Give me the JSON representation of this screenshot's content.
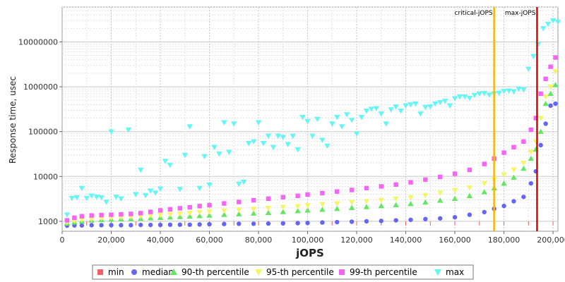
{
  "chart_data": {
    "type": "scatter",
    "xlabel": "jOPS",
    "ylabel": "Response time, usec",
    "xlim": [
      0,
      202000
    ],
    "ylim": [
      600,
      60000000
    ],
    "y_scale": "log",
    "grid": true,
    "legend_position": "bottom",
    "x_ticks": [
      {
        "value": 0,
        "label": "0"
      },
      {
        "value": 20000,
        "label": "20,000"
      },
      {
        "value": 40000,
        "label": "40,000"
      },
      {
        "value": 60000,
        "label": "60,000"
      },
      {
        "value": 80000,
        "label": "80,000"
      },
      {
        "value": 100000,
        "label": "100,000"
      },
      {
        "value": 120000,
        "label": "120,000"
      },
      {
        "value": 140000,
        "label": "140,000"
      },
      {
        "value": 160000,
        "label": "160,000"
      },
      {
        "value": 180000,
        "label": "180,000"
      },
      {
        "value": 200000,
        "label": "200,000"
      }
    ],
    "y_ticks": [
      {
        "value": 1000,
        "label": "1000"
      },
      {
        "value": 10000,
        "label": "10000"
      },
      {
        "value": 100000,
        "label": "100000"
      },
      {
        "value": 1000000,
        "label": "1000000"
      },
      {
        "value": 10000000,
        "label": "10000000"
      }
    ],
    "markers": [
      {
        "name": "critical-jOPS",
        "x": 176000,
        "color": "#f5b800"
      },
      {
        "name": "max-jOPS",
        "x": 193500,
        "color": "#e00000"
      }
    ],
    "series": [
      {
        "name": "min",
        "color": "#f06060",
        "shape": "square",
        "x": [
          2000,
          10000,
          20000,
          30000,
          40000,
          50000,
          60000,
          70000,
          80000,
          90000,
          100000,
          110000,
          120000,
          130000,
          140000,
          150000,
          160000,
          170000,
          180000,
          190000,
          200000
        ],
        "y": [
          900,
          900,
          900,
          900,
          900,
          900,
          900,
          900,
          900,
          900,
          900,
          900,
          900,
          900,
          900,
          900,
          900,
          900,
          900,
          900,
          900
        ]
      },
      {
        "name": "median",
        "color": "#6464f5",
        "shape": "circle",
        "x": [
          2000,
          5000,
          8000,
          12000,
          16000,
          20000,
          24000,
          28000,
          32000,
          36000,
          40000,
          44000,
          48000,
          52000,
          56000,
          60000,
          66000,
          72000,
          78000,
          84000,
          90000,
          96000,
          100000,
          106000,
          112000,
          118000,
          124000,
          130000,
          136000,
          142000,
          148000,
          154000,
          160000,
          166000,
          172000,
          176000,
          180000,
          184000,
          188000,
          191000,
          193000,
          195000,
          197000,
          199000,
          201000
        ],
        "y": [
          800,
          810,
          810,
          820,
          820,
          820,
          820,
          820,
          830,
          830,
          830,
          840,
          840,
          840,
          850,
          860,
          870,
          880,
          880,
          890,
          900,
          910,
          920,
          940,
          960,
          980,
          1000,
          1020,
          1050,
          1080,
          1120,
          1160,
          1230,
          1400,
          1600,
          1900,
          2200,
          2800,
          3500,
          7000,
          13000,
          50000,
          150000,
          380000,
          420000
        ]
      },
      {
        "name": "90-th percentile",
        "color": "#64e664",
        "shape": "triangle-up",
        "x": [
          2000,
          5000,
          8000,
          12000,
          16000,
          20000,
          24000,
          28000,
          32000,
          36000,
          40000,
          44000,
          48000,
          52000,
          56000,
          60000,
          66000,
          72000,
          78000,
          84000,
          90000,
          96000,
          100000,
          106000,
          112000,
          118000,
          124000,
          130000,
          136000,
          142000,
          148000,
          154000,
          160000,
          166000,
          172000,
          176000,
          180000,
          184000,
          188000,
          191000,
          193000,
          195000,
          197000,
          199000,
          201000
        ],
        "y": [
          900,
          950,
          1000,
          1050,
          1080,
          1100,
          1120,
          1130,
          1150,
          1180,
          1200,
          1230,
          1260,
          1290,
          1320,
          1350,
          1400,
          1450,
          1500,
          1550,
          1620,
          1700,
          1750,
          1820,
          1900,
          2000,
          2100,
          2200,
          2320,
          2450,
          2650,
          2900,
          3200,
          3700,
          4500,
          5500,
          7000,
          9500,
          15000,
          25000,
          40000,
          100000,
          420000,
          700000,
          1100000
        ]
      },
      {
        "name": "95-th percentile",
        "color": "#f5f564",
        "shape": "triangle-down",
        "x": [
          2000,
          5000,
          8000,
          12000,
          16000,
          20000,
          24000,
          28000,
          32000,
          36000,
          40000,
          44000,
          48000,
          52000,
          56000,
          60000,
          66000,
          72000,
          78000,
          84000,
          90000,
          96000,
          100000,
          106000,
          112000,
          118000,
          124000,
          130000,
          136000,
          142000,
          148000,
          154000,
          160000,
          166000,
          172000,
          176000,
          180000,
          184000,
          188000,
          191000,
          193000,
          195000,
          197000,
          199000,
          201000
        ],
        "y": [
          950,
          1020,
          1080,
          1120,
          1160,
          1200,
          1230,
          1260,
          1300,
          1340,
          1380,
          1430,
          1480,
          1530,
          1600,
          1650,
          1720,
          1800,
          1880,
          1970,
          2060,
          2160,
          2250,
          2380,
          2500,
          2650,
          2800,
          2950,
          3150,
          3400,
          3800,
          4300,
          4900,
          5600,
          7000,
          8500,
          11000,
          14000,
          20000,
          35000,
          60000,
          200000,
          600000,
          1000000,
          2200000
        ]
      },
      {
        "name": "99-th percentile",
        "color": "#f564f5",
        "shape": "square",
        "x": [
          2000,
          5000,
          8000,
          12000,
          16000,
          20000,
          24000,
          28000,
          32000,
          36000,
          40000,
          44000,
          48000,
          52000,
          56000,
          60000,
          66000,
          72000,
          78000,
          84000,
          90000,
          96000,
          100000,
          106000,
          112000,
          118000,
          124000,
          130000,
          136000,
          142000,
          148000,
          154000,
          160000,
          166000,
          172000,
          176000,
          180000,
          184000,
          188000,
          191000,
          193000,
          195000,
          197000,
          199000,
          201000
        ],
        "y": [
          1050,
          1200,
          1300,
          1350,
          1380,
          1400,
          1430,
          1460,
          1520,
          1620,
          1750,
          1850,
          1950,
          2050,
          2180,
          2300,
          2500,
          2700,
          2950,
          3200,
          3450,
          3700,
          3950,
          4250,
          4600,
          5000,
          5500,
          6000,
          6600,
          7400,
          8500,
          9800,
          11500,
          14000,
          19000,
          25000,
          34000,
          45000,
          60000,
          110000,
          200000,
          700000,
          1500000,
          2800000,
          4500000
        ]
      },
      {
        "name": "max",
        "color": "#64f5f5",
        "shape": "triangle-down",
        "x": [
          2000,
          4000,
          6000,
          8000,
          10000,
          12000,
          14000,
          16000,
          18000,
          20000,
          22000,
          24000,
          27000,
          30000,
          32000,
          34000,
          36000,
          38000,
          40000,
          42000,
          44000,
          48000,
          50000,
          52000,
          56000,
          58000,
          60000,
          62000,
          64000,
          66000,
          68000,
          70000,
          72000,
          74000,
          76000,
          78000,
          80000,
          82000,
          84000,
          86000,
          88000,
          90000,
          92000,
          94000,
          96000,
          98000,
          100000,
          102000,
          104000,
          106000,
          108000,
          110000,
          112000,
          114000,
          116000,
          118000,
          120000,
          122000,
          124000,
          126000,
          128000,
          130000,
          132000,
          134000,
          136000,
          138000,
          140000,
          142000,
          144000,
          146000,
          148000,
          150000,
          152000,
          154000,
          156000,
          158000,
          160000,
          162000,
          164000,
          166000,
          168000,
          170000,
          172000,
          174000,
          176000,
          178000,
          180000,
          182000,
          184000,
          186000,
          188000,
          190000,
          192000,
          194000,
          196000,
          198000,
          200000,
          202000
        ],
        "y": [
          1400,
          3300,
          3400,
          5500,
          3300,
          3700,
          3500,
          3400,
          2700,
          100000,
          3500,
          3200,
          110000,
          4000,
          14000,
          3800,
          4800,
          4300,
          5300,
          22000,
          18000,
          5200,
          30000,
          130000,
          5500,
          28000,
          6500,
          45000,
          32000,
          160000,
          35000,
          150000,
          6800,
          7500,
          55000,
          60000,
          160000,
          55000,
          80000,
          45000,
          80000,
          75000,
          52000,
          80000,
          40000,
          210000,
          170000,
          80000,
          190000,
          65000,
          48000,
          150000,
          210000,
          130000,
          240000,
          180000,
          90000,
          210000,
          290000,
          320000,
          330000,
          250000,
          150000,
          310000,
          360000,
          290000,
          380000,
          400000,
          420000,
          250000,
          350000,
          360000,
          420000,
          450000,
          480000,
          380000,
          550000,
          600000,
          600000,
          560000,
          650000,
          700000,
          720000,
          660000,
          700000,
          730000,
          800000,
          820000,
          780000,
          900000,
          860000,
          2500000,
          4800000,
          9000000,
          20000000,
          25000000,
          30000000,
          28000000
        ]
      }
    ]
  }
}
